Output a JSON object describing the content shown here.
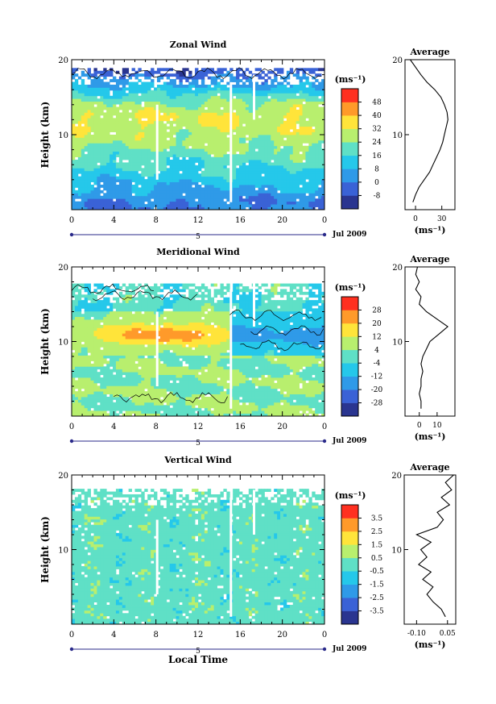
{
  "panels": [
    {
      "id": "zonal",
      "title": "Zonal Wind",
      "ylabel": "Height (km)",
      "xlabel": "",
      "date_label": "Jul 2009",
      "day_label": "5",
      "unit_label": "(ms⁻¹)",
      "colorbar_ticks": [
        "48",
        "40",
        "32",
        "24",
        "16",
        "8",
        "0",
        "-8"
      ],
      "avg_title": "Average",
      "avg_xticks": [
        "0",
        "30"
      ],
      "avg_unit": "(ms⁻¹)"
    },
    {
      "id": "meridional",
      "title": "Meridional Wind",
      "ylabel": "Height (km)",
      "xlabel": "",
      "date_label": "Jul 2009",
      "day_label": "5",
      "unit_label": "(ms⁻¹)",
      "colorbar_ticks": [
        "28",
        "20",
        "12",
        "4",
        "-4",
        "-12",
        "-20",
        "-28"
      ],
      "avg_title": "Average",
      "avg_xticks": [
        "0",
        "10"
      ],
      "avg_unit": "(ms⁻¹)"
    },
    {
      "id": "vertical",
      "title": "Vertical Wind",
      "ylabel": "Height (km)",
      "xlabel": "Local Time",
      "date_label": "Jul 2009",
      "day_label": "5",
      "unit_label": "(ms⁻¹)",
      "colorbar_ticks": [
        "3.5",
        "2.5",
        "1.5",
        "0.5",
        "-0.5",
        "-1.5",
        "-2.5",
        "-3.5"
      ],
      "avg_title": "Average",
      "avg_xticks": [
        "-0.10",
        "0.05"
      ],
      "avg_unit": "(ms⁻¹)"
    }
  ],
  "chart_data": [
    {
      "type": "heatmap",
      "title": "Zonal Wind",
      "xlabel": "",
      "ylabel": "Height (km)",
      "x_ticks": [
        "0",
        "4",
        "8",
        "12",
        "16",
        "20",
        "0"
      ],
      "y_ticks": [
        "10",
        "20"
      ],
      "xlim": [
        0,
        24
      ],
      "ylim": [
        0,
        20
      ],
      "colorbar_levels": [
        -8,
        0,
        8,
        16,
        24,
        32,
        40,
        48
      ],
      "colorbar_colors": [
        "#2a3590",
        "#3a62d6",
        "#2f9ae8",
        "#25c8ea",
        "#5fe0c6",
        "#b8ef6e",
        "#ffe43a",
        "#ff9a2a",
        "#ff3020"
      ],
      "profile_by_height": [
        {
          "h": 1,
          "v": 0
        },
        {
          "h": 3,
          "v": 8
        },
        {
          "h": 5,
          "v": 14
        },
        {
          "h": 7,
          "v": 20
        },
        {
          "h": 9,
          "v": 26
        },
        {
          "h": 11,
          "v": 30
        },
        {
          "h": 12.5,
          "v": 32
        },
        {
          "h": 14,
          "v": 26
        },
        {
          "h": 15.5,
          "v": 16
        },
        {
          "h": 16.5,
          "v": 8
        },
        {
          "h": 17.5,
          "v": 2
        },
        {
          "h": 18.5,
          "v": -6
        }
      ]
    },
    {
      "type": "heatmap",
      "title": "Meridional Wind",
      "xlabel": "",
      "ylabel": "Height (km)",
      "x_ticks": [
        "0",
        "4",
        "8",
        "12",
        "16",
        "20",
        "0"
      ],
      "y_ticks": [
        "10",
        "20"
      ],
      "xlim": [
        0,
        24
      ],
      "ylim": [
        0,
        20
      ],
      "colorbar_levels": [
        -28,
        -20,
        -12,
        -4,
        4,
        12,
        20,
        28
      ],
      "colorbar_colors": [
        "#2a3590",
        "#3a62d6",
        "#2f9ae8",
        "#25c8ea",
        "#5fe0c6",
        "#b8ef6e",
        "#ffe43a",
        "#ff9a2a",
        "#ff3020"
      ]
    },
    {
      "type": "heatmap",
      "title": "Vertical Wind",
      "xlabel": "Local Time",
      "ylabel": "Height (km)",
      "x_ticks": [
        "0",
        "4",
        "8",
        "12",
        "16",
        "20",
        "0"
      ],
      "y_ticks": [
        "10",
        "20"
      ],
      "xlim": [
        0,
        24
      ],
      "ylim": [
        0,
        20
      ],
      "colorbar_levels": [
        -3.5,
        -2.5,
        -1.5,
        -0.5,
        0.5,
        1.5,
        2.5,
        3.5
      ],
      "colorbar_colors": [
        "#2a3590",
        "#3a62d6",
        "#2f9ae8",
        "#25c8ea",
        "#5fe0c6",
        "#b8ef6e",
        "#ffe43a",
        "#ff9a2a",
        "#ff3020"
      ]
    },
    {
      "type": "line",
      "title": "Average",
      "xlabel": "(ms⁻¹)",
      "ylabel": "",
      "xlim": [
        -12,
        45
      ],
      "ylim": [
        0,
        20
      ],
      "series": [
        {
          "points": [
            [
              -3,
              1
            ],
            [
              0,
              2
            ],
            [
              4,
              3
            ],
            [
              10,
              4
            ],
            [
              16,
              5
            ],
            [
              20,
              6
            ],
            [
              24,
              7
            ],
            [
              28,
              8
            ],
            [
              31,
              9
            ],
            [
              33,
              10
            ],
            [
              35,
              11
            ],
            [
              37,
              12
            ],
            [
              36,
              13
            ],
            [
              33,
              14
            ],
            [
              29,
              15
            ],
            [
              22,
              16
            ],
            [
              13,
              17
            ],
            [
              6,
              18
            ],
            [
              0,
              19
            ],
            [
              -6,
              20
            ]
          ]
        }
      ]
    },
    {
      "type": "line",
      "title": "Average",
      "xlabel": "(ms⁻¹)",
      "ylabel": "",
      "xlim": [
        -8,
        20
      ],
      "ylim": [
        0,
        20
      ],
      "series": [
        {
          "points": [
            [
              1,
              1
            ],
            [
              1,
              2
            ],
            [
              0,
              3
            ],
            [
              1,
              4
            ],
            [
              1,
              5
            ],
            [
              2,
              6
            ],
            [
              1,
              7
            ],
            [
              2,
              8
            ],
            [
              4,
              9
            ],
            [
              6,
              10
            ],
            [
              11,
              11
            ],
            [
              16,
              12
            ],
            [
              10,
              13
            ],
            [
              4,
              14
            ],
            [
              0,
              15
            ],
            [
              1,
              16
            ],
            [
              -2,
              17
            ],
            [
              0,
              18
            ],
            [
              -2,
              19
            ],
            [
              -1,
              20
            ]
          ]
        }
      ]
    },
    {
      "type": "line",
      "title": "Average",
      "xlabel": "(ms⁻¹)",
      "ylabel": "",
      "xlim": [
        -0.16,
        0.09
      ],
      "ylim": [
        0,
        20
      ],
      "series": [
        {
          "points": [
            [
              0.04,
              1
            ],
            [
              0.02,
              2
            ],
            [
              -0.02,
              3
            ],
            [
              -0.05,
              4
            ],
            [
              -0.02,
              5
            ],
            [
              -0.07,
              6
            ],
            [
              -0.03,
              7
            ],
            [
              -0.09,
              8
            ],
            [
              -0.05,
              9
            ],
            [
              -0.08,
              10
            ],
            [
              -0.03,
              11
            ],
            [
              -0.1,
              12
            ],
            [
              0.0,
              13
            ],
            [
              0.03,
              14
            ],
            [
              0.0,
              15
            ],
            [
              0.06,
              16
            ],
            [
              0.02,
              17
            ],
            [
              0.07,
              18
            ],
            [
              0.04,
              19
            ],
            [
              0.08,
              20
            ]
          ]
        }
      ]
    }
  ]
}
